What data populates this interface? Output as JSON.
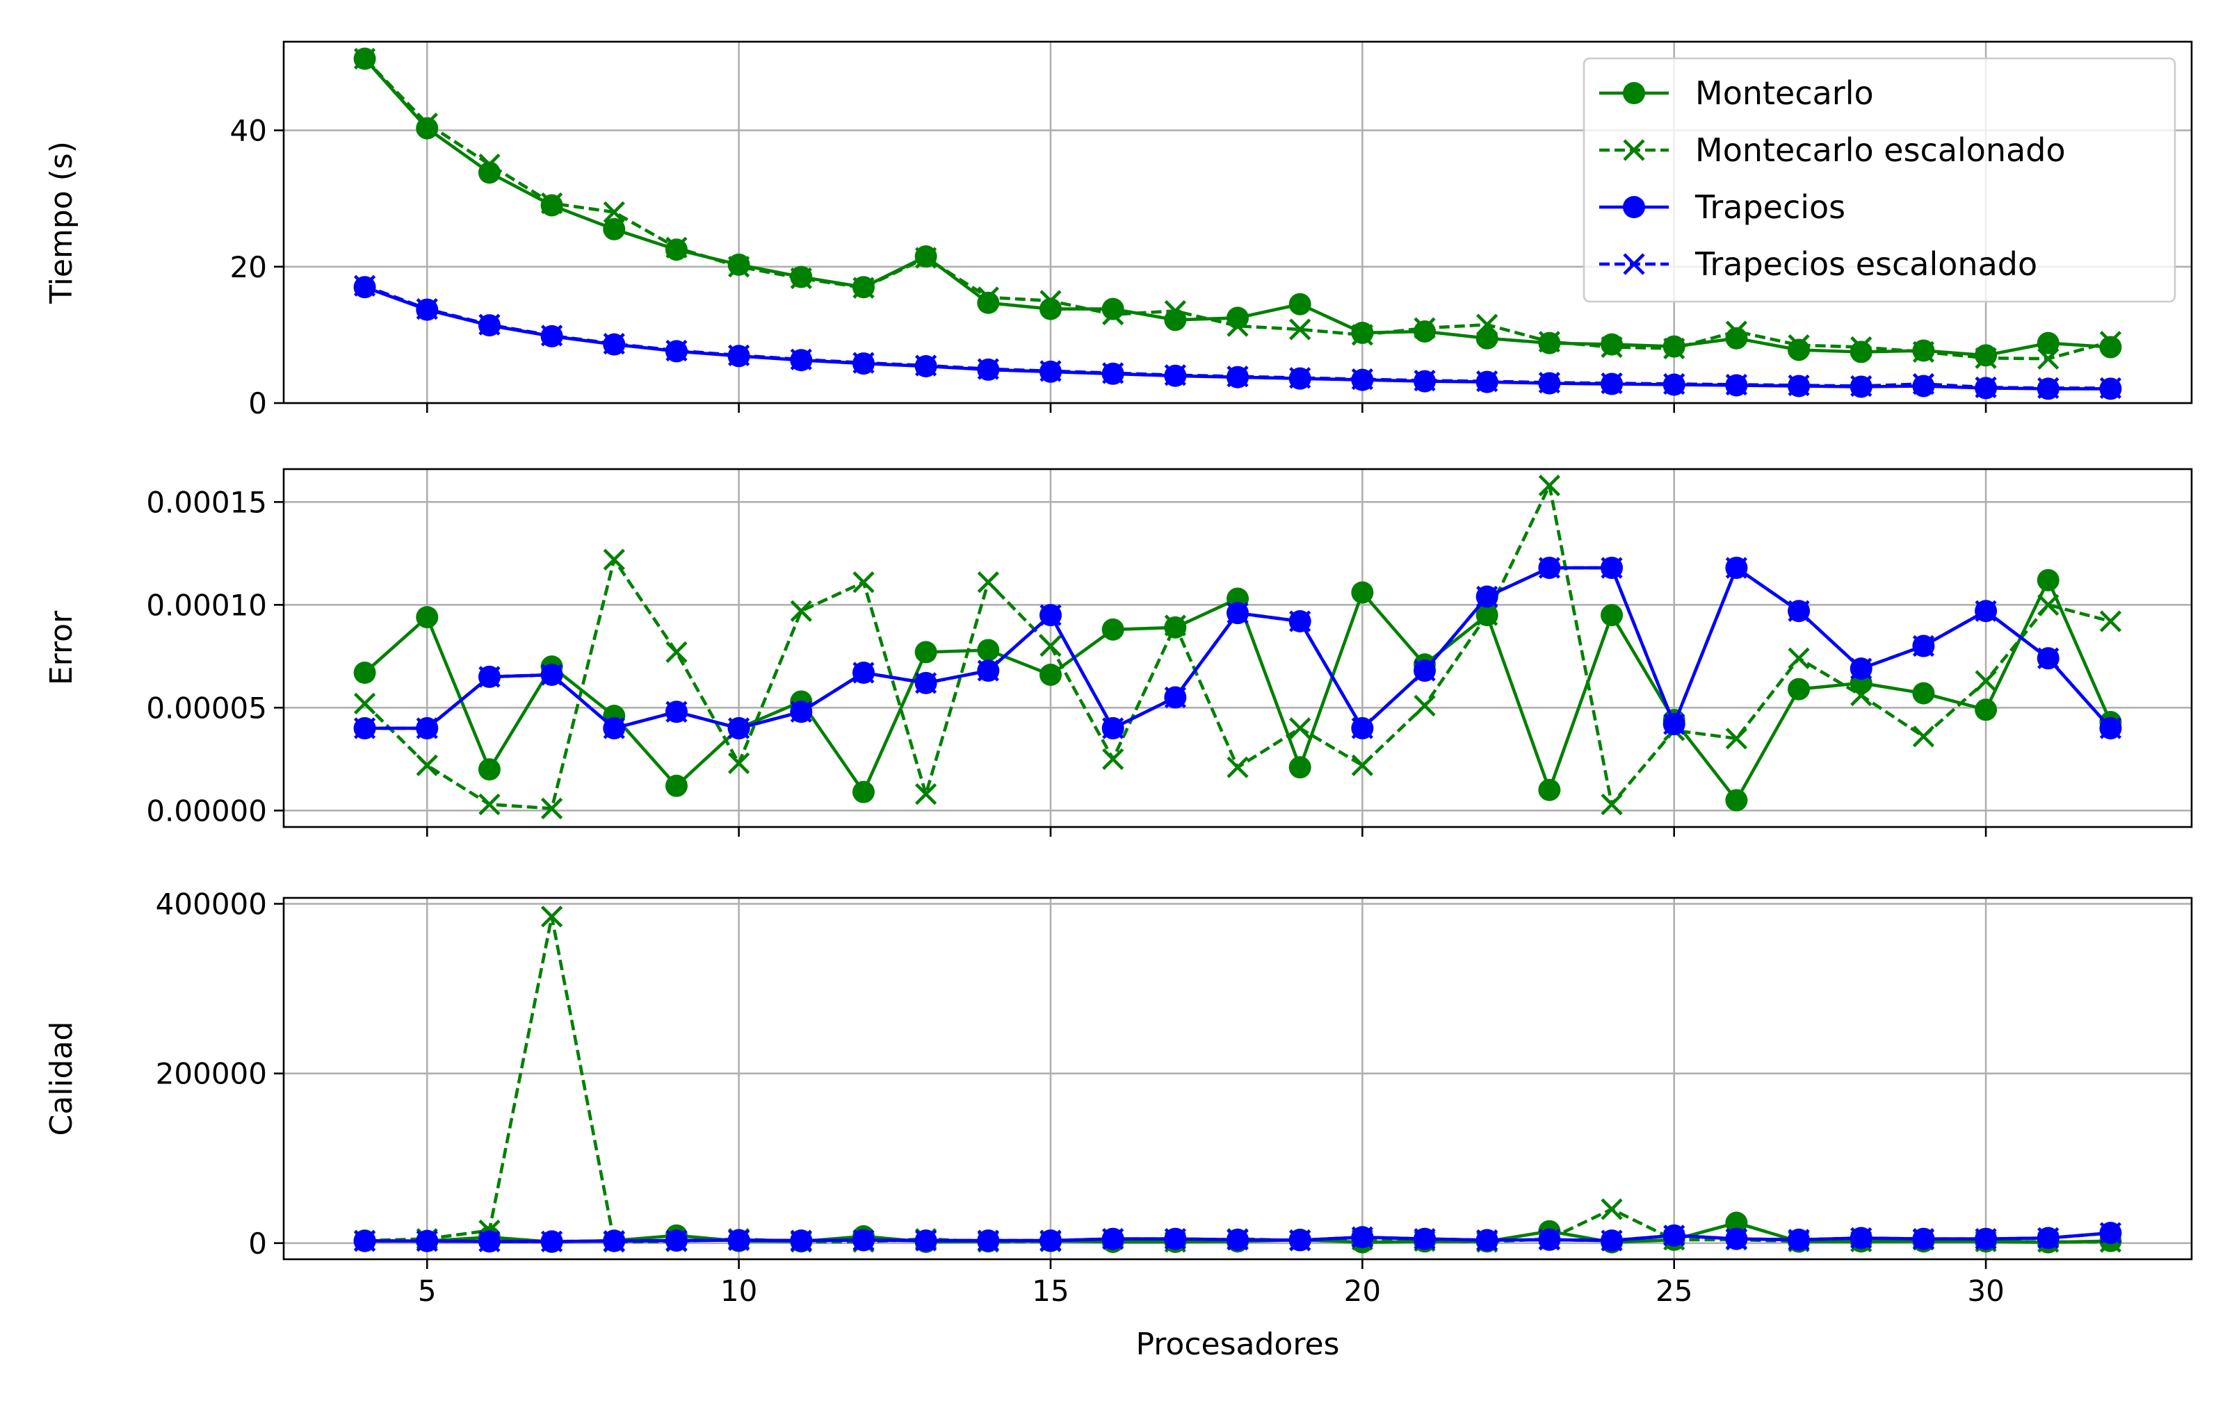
{
  "chart_data": [
    {
      "type": "line",
      "ylabel": "Tiempo (s)",
      "xlabel": "",
      "xlim": [
        2.7,
        33.3
      ],
      "ylim": [
        0,
        53
      ],
      "x_ticks": [
        5,
        10,
        15,
        20,
        25,
        30
      ],
      "y_ticks": [
        0,
        20,
        40
      ],
      "y_tick_labels": [
        "0",
        "20",
        "40"
      ],
      "grid": true,
      "legend": "top-right",
      "x": [
        4,
        5,
        6,
        7,
        8,
        9,
        10,
        11,
        12,
        13,
        14,
        15,
        16,
        17,
        18,
        19,
        20,
        21,
        22,
        23,
        24,
        25,
        26,
        27,
        28,
        29,
        30,
        31,
        32
      ],
      "series": [
        {
          "name": "Montecarlo",
          "color": "#008000",
          "style": "solid",
          "marker": "circle",
          "values": [
            50.5,
            40.3,
            33.8,
            29.0,
            25.5,
            22.5,
            20.3,
            18.5,
            17.0,
            21.5,
            14.7,
            13.8,
            13.8,
            12.2,
            12.5,
            14.5,
            10.3,
            10.5,
            9.5,
            8.8,
            8.6,
            8.3,
            9.5,
            7.8,
            7.5,
            7.7,
            7.0,
            8.8,
            8.2
          ]
        },
        {
          "name": "Montecarlo escalonado",
          "color": "#008000",
          "style": "dashed",
          "marker": "x",
          "values": [
            50.5,
            41.0,
            35.0,
            29.3,
            28.0,
            22.8,
            20.0,
            18.3,
            16.9,
            21.3,
            15.5,
            15.0,
            13.0,
            13.5,
            11.3,
            10.8,
            10.0,
            11.0,
            11.5,
            9.0,
            8.2,
            8.0,
            10.5,
            8.5,
            8.2,
            7.5,
            6.6,
            6.5,
            9.0
          ]
        },
        {
          "name": "Trapecios",
          "color": "#0000ff",
          "style": "solid",
          "marker": "circle",
          "values": [
            17.0,
            13.7,
            11.4,
            9.8,
            8.6,
            7.6,
            6.9,
            6.3,
            5.8,
            5.4,
            4.9,
            4.6,
            4.3,
            4.0,
            3.8,
            3.6,
            3.4,
            3.2,
            3.1,
            2.9,
            2.8,
            2.7,
            2.6,
            2.5,
            2.4,
            2.5,
            2.2,
            2.1,
            2.1
          ]
        },
        {
          "name": "Trapecios escalonado",
          "color": "#0000ff",
          "style": "dashed",
          "marker": "x",
          "values": [
            17.2,
            13.8,
            11.5,
            9.9,
            8.7,
            7.7,
            7.0,
            6.4,
            5.9,
            5.5,
            5.0,
            4.7,
            4.4,
            4.1,
            3.9,
            3.7,
            3.5,
            3.3,
            3.2,
            3.0,
            2.9,
            2.8,
            2.7,
            2.6,
            2.5,
            2.8,
            2.3,
            2.2,
            2.2
          ]
        }
      ]
    },
    {
      "type": "line",
      "ylabel": "Error",
      "xlabel": "",
      "xlim": [
        2.7,
        33.3
      ],
      "ylim": [
        -8e-06,
        0.000166
      ],
      "x_ticks": [
        5,
        10,
        15,
        20,
        25,
        30
      ],
      "y_ticks": [
        0,
        5e-05,
        0.0001,
        0.00015
      ],
      "y_tick_labels": [
        "0.00000",
        "0.00005",
        "0.00010",
        "0.00015"
      ],
      "grid": true,
      "x": [
        4,
        5,
        6,
        7,
        8,
        9,
        10,
        11,
        12,
        13,
        14,
        15,
        16,
        17,
        18,
        19,
        20,
        21,
        22,
        23,
        24,
        25,
        26,
        27,
        28,
        29,
        30,
        31,
        32
      ],
      "series": [
        {
          "name": "Montecarlo",
          "color": "#008000",
          "style": "solid",
          "marker": "circle",
          "values": [
            6.7e-05,
            9.4e-05,
            2e-05,
            7e-05,
            4.6e-05,
            1.2e-05,
            4e-05,
            5.3e-05,
            9e-06,
            7.7e-05,
            7.8e-05,
            6.6e-05,
            8.8e-05,
            8.9e-05,
            0.000103,
            2.1e-05,
            0.000106,
            7.1e-05,
            9.5e-05,
            1e-05,
            9.5e-05,
            4.4e-05,
            5e-06,
            5.9e-05,
            6.2e-05,
            5.7e-05,
            4.9e-05,
            0.000112,
            4.3e-05
          ]
        },
        {
          "name": "Montecarlo escalonado",
          "color": "#008000",
          "style": "dashed",
          "marker": "x",
          "values": [
            5.2e-05,
            2.2e-05,
            3e-06,
            1e-06,
            0.000122,
            7.7e-05,
            2.3e-05,
            9.7e-05,
            0.000111,
            8e-06,
            0.000111,
            8e-05,
            2.5e-05,
            9e-05,
            2.1e-05,
            4e-05,
            2.2e-05,
            5.1e-05,
            9.5e-05,
            0.000158,
            3e-06,
            3.9e-05,
            3.5e-05,
            7.4e-05,
            5.6e-05,
            3.6e-05,
            6.3e-05,
            0.0001,
            9.2e-05
          ]
        },
        {
          "name": "Trapecios",
          "color": "#0000ff",
          "style": "solid",
          "marker": "circle",
          "values": [
            4e-05,
            4e-05,
            6.5e-05,
            6.6e-05,
            4e-05,
            4.8e-05,
            4e-05,
            4.8e-05,
            6.7e-05,
            6.2e-05,
            6.8e-05,
            9.5e-05,
            4e-05,
            5.5e-05,
            9.6e-05,
            9.2e-05,
            4e-05,
            6.8e-05,
            0.000104,
            0.000118,
            0.000118,
            4.2e-05,
            0.000118,
            9.7e-05,
            6.9e-05,
            8e-05,
            9.7e-05,
            7.4e-05,
            4e-05
          ]
        },
        {
          "name": "Trapecios escalonado",
          "color": "#0000ff",
          "style": "dashed",
          "marker": "x",
          "values": [
            4e-05,
            4e-05,
            6.5e-05,
            6.6e-05,
            4e-05,
            4.8e-05,
            4e-05,
            4.8e-05,
            6.7e-05,
            6.2e-05,
            6.8e-05,
            9.5e-05,
            4e-05,
            5.5e-05,
            9.6e-05,
            9.2e-05,
            4e-05,
            6.8e-05,
            0.000104,
            0.000118,
            0.000118,
            4.2e-05,
            0.000118,
            9.7e-05,
            6.9e-05,
            8e-05,
            9.7e-05,
            7.4e-05,
            4e-05
          ]
        }
      ]
    },
    {
      "type": "line",
      "ylabel": "Calidad",
      "xlabel": "Procesadores",
      "xlim": [
        2.7,
        33.3
      ],
      "ylim": [
        -19000,
        407000
      ],
      "x_ticks": [
        5,
        10,
        15,
        20,
        25,
        30
      ],
      "x_tick_labels": [
        "5",
        "10",
        "15",
        "20",
        "25",
        "30"
      ],
      "y_ticks": [
        0,
        200000,
        400000
      ],
      "y_tick_labels": [
        "0",
        "200000",
        "400000"
      ],
      "grid": true,
      "x": [
        4,
        5,
        6,
        7,
        8,
        9,
        10,
        11,
        12,
        13,
        14,
        15,
        16,
        17,
        18,
        19,
        20,
        21,
        22,
        23,
        24,
        25,
        26,
        27,
        28,
        29,
        30,
        31,
        32
      ],
      "series": [
        {
          "name": "Montecarlo",
          "color": "#008000",
          "style": "solid",
          "marker": "circle",
          "values": [
            3000,
            2500,
            7000,
            1500,
            3000,
            9000,
            2500,
            2000,
            8000,
            1500,
            2000,
            2500,
            1500,
            1500,
            2000,
            4000,
            1000,
            2000,
            2000,
            14000,
            1000,
            4000,
            24000,
            1800,
            2000,
            2000,
            2000,
            1000,
            2500
          ]
        },
        {
          "name": "Montecarlo escalonado",
          "color": "#008000",
          "style": "dashed",
          "marker": "x",
          "values": [
            3000,
            5000,
            15000,
            385000,
            1500,
            2000,
            5000,
            1500,
            1500,
            5000,
            1500,
            2000,
            5000,
            1500,
            5000,
            3000,
            4000,
            2500,
            1500,
            5000,
            40000,
            4000,
            4000,
            2000,
            2000,
            4000,
            2000,
            1500,
            1500
          ]
        },
        {
          "name": "Trapecios",
          "color": "#0000ff",
          "style": "solid",
          "marker": "circle",
          "values": [
            2500,
            2500,
            2000,
            2000,
            2500,
            3000,
            3500,
            3000,
            3500,
            3000,
            3000,
            3000,
            5000,
            5000,
            4000,
            3500,
            7000,
            5000,
            3500,
            4000,
            3000,
            9000,
            5000,
            4000,
            6000,
            5000,
            5000,
            6000,
            12000
          ]
        },
        {
          "name": "Trapecios escalonado",
          "color": "#0000ff",
          "style": "dashed",
          "marker": "x",
          "values": [
            2500,
            2500,
            2000,
            2000,
            2500,
            3000,
            3500,
            3000,
            3500,
            3000,
            3000,
            3000,
            5000,
            5000,
            4000,
            3500,
            7000,
            5000,
            3500,
            4000,
            3000,
            9000,
            5000,
            4000,
            6000,
            5000,
            5000,
            6000,
            12000
          ]
        }
      ]
    }
  ],
  "legend": {
    "items": [
      {
        "label": "Montecarlo",
        "color": "#008000",
        "style": "solid",
        "marker": "circle"
      },
      {
        "label": "Montecarlo escalonado",
        "color": "#008000",
        "style": "dashed",
        "marker": "x"
      },
      {
        "label": "Trapecios",
        "color": "#0000ff",
        "style": "solid",
        "marker": "circle"
      },
      {
        "label": "Trapecios escalonado",
        "color": "#0000ff",
        "style": "dashed",
        "marker": "x"
      }
    ]
  }
}
